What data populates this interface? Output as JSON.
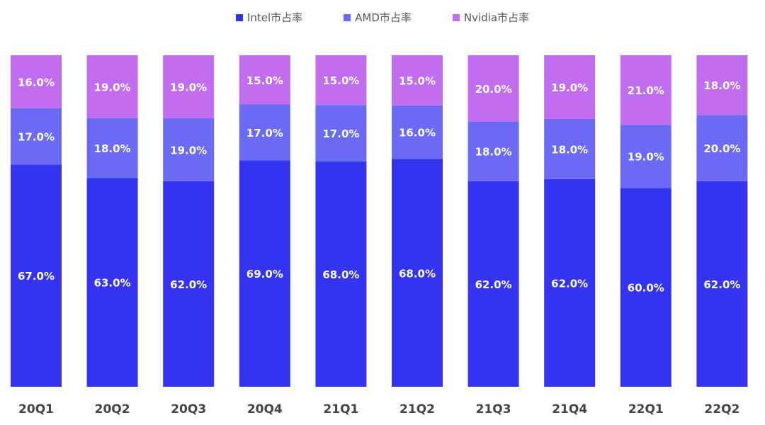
{
  "chart_data": {
    "type": "bar",
    "stacked": true,
    "categories": [
      "20Q1",
      "20Q2",
      "20Q3",
      "20Q4",
      "21Q1",
      "21Q2",
      "21Q3",
      "21Q4",
      "22Q1",
      "22Q2"
    ],
    "series": [
      {
        "name": "Intel市占率",
        "color": "#3434f0",
        "values": [
          67.0,
          63.0,
          62.0,
          69.0,
          68.0,
          68.0,
          62.0,
          62.0,
          60.0,
          62.0
        ]
      },
      {
        "name": "AMD市占率",
        "color": "#6a6af4",
        "values": [
          17.0,
          18.0,
          19.0,
          17.0,
          17.0,
          16.0,
          18.0,
          18.0,
          19.0,
          20.0
        ]
      },
      {
        "name": "Nvidia市占率",
        "color": "#c26cf0",
        "values": [
          16.0,
          19.0,
          19.0,
          15.0,
          15.0,
          15.0,
          20.0,
          19.0,
          21.0,
          18.0
        ]
      }
    ],
    "value_format": "0.0%",
    "legend_position": "top",
    "grid": false
  }
}
